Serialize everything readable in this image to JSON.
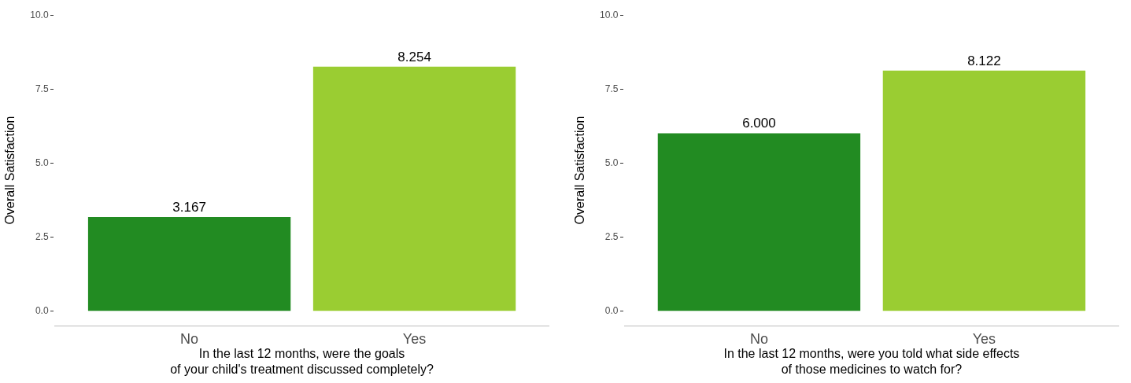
{
  "chart_data": [
    {
      "type": "bar",
      "categories": [
        "No",
        "Yes"
      ],
      "values": [
        3.167,
        8.254
      ],
      "colors": [
        "#228b22",
        "#9acd32"
      ],
      "xlabel": "In the last 12 months, were the goals\nof your child's treatment discussed completely?",
      "ylabel": "Overall Satisfaction",
      "ylim": [
        -0.5,
        10.0
      ],
      "yticks": [
        {
          "value": 0,
          "label": "0.0"
        },
        {
          "value": 2.5,
          "label": "2.5"
        },
        {
          "value": 5,
          "label": "5.0"
        },
        {
          "value": 7.5,
          "label": "7.5"
        },
        {
          "value": 10,
          "label": "10.0"
        }
      ],
      "data_labels": true
    },
    {
      "type": "bar",
      "categories": [
        "No",
        "Yes"
      ],
      "values": [
        6.0,
        8.122
      ],
      "value_labels": [
        "6.000",
        "8.122"
      ],
      "colors": [
        "#228b22",
        "#9acd32"
      ],
      "xlabel": "In the last 12 months, were you told what side effects\nof those medicines to watch for?",
      "ylabel": "Overall Satisfaction",
      "ylim": [
        -0.5,
        10.0
      ],
      "yticks": [
        {
          "value": 0,
          "label": "0.0"
        },
        {
          "value": 2.5,
          "label": "2.5"
        },
        {
          "value": 5,
          "label": "5.0"
        },
        {
          "value": 7.5,
          "label": "7.5"
        },
        {
          "value": 10,
          "label": "10.0"
        }
      ]
    }
  ]
}
